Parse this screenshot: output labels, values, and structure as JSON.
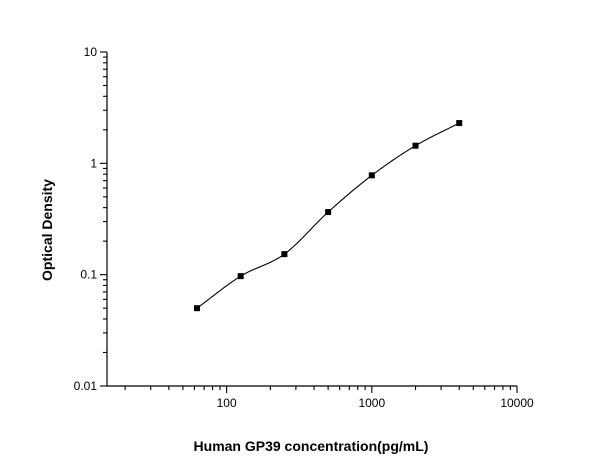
{
  "chart_data": {
    "type": "scatter",
    "title": "",
    "xlabel": "Human GP39 concentration(pg/mL)",
    "ylabel": "Optical Density",
    "xscale": "log",
    "yscale": "log",
    "xlim": [
      15,
      10000
    ],
    "ylim": [
      0.01,
      10
    ],
    "grid": false,
    "legend": "none",
    "x_ticks": [
      {
        "value": 100,
        "label": "100"
      },
      {
        "value": 1000,
        "label": "1000"
      },
      {
        "value": 10000,
        "label": "10000"
      }
    ],
    "y_ticks": [
      {
        "value": 0.01,
        "label": "0.01"
      },
      {
        "value": 0.1,
        "label": "0.1"
      },
      {
        "value": 1,
        "label": "1"
      },
      {
        "value": 10,
        "label": "10"
      }
    ],
    "series": [
      {
        "x": [
          62.5,
          125,
          250,
          500,
          1000,
          2000,
          4000
        ],
        "y": [
          0.05,
          0.097,
          0.153,
          0.365,
          0.78,
          1.44,
          2.3
        ]
      }
    ],
    "fit_curve": true,
    "colors": {
      "points": "#000000",
      "curve": "#000000",
      "axes": "#000000"
    }
  }
}
